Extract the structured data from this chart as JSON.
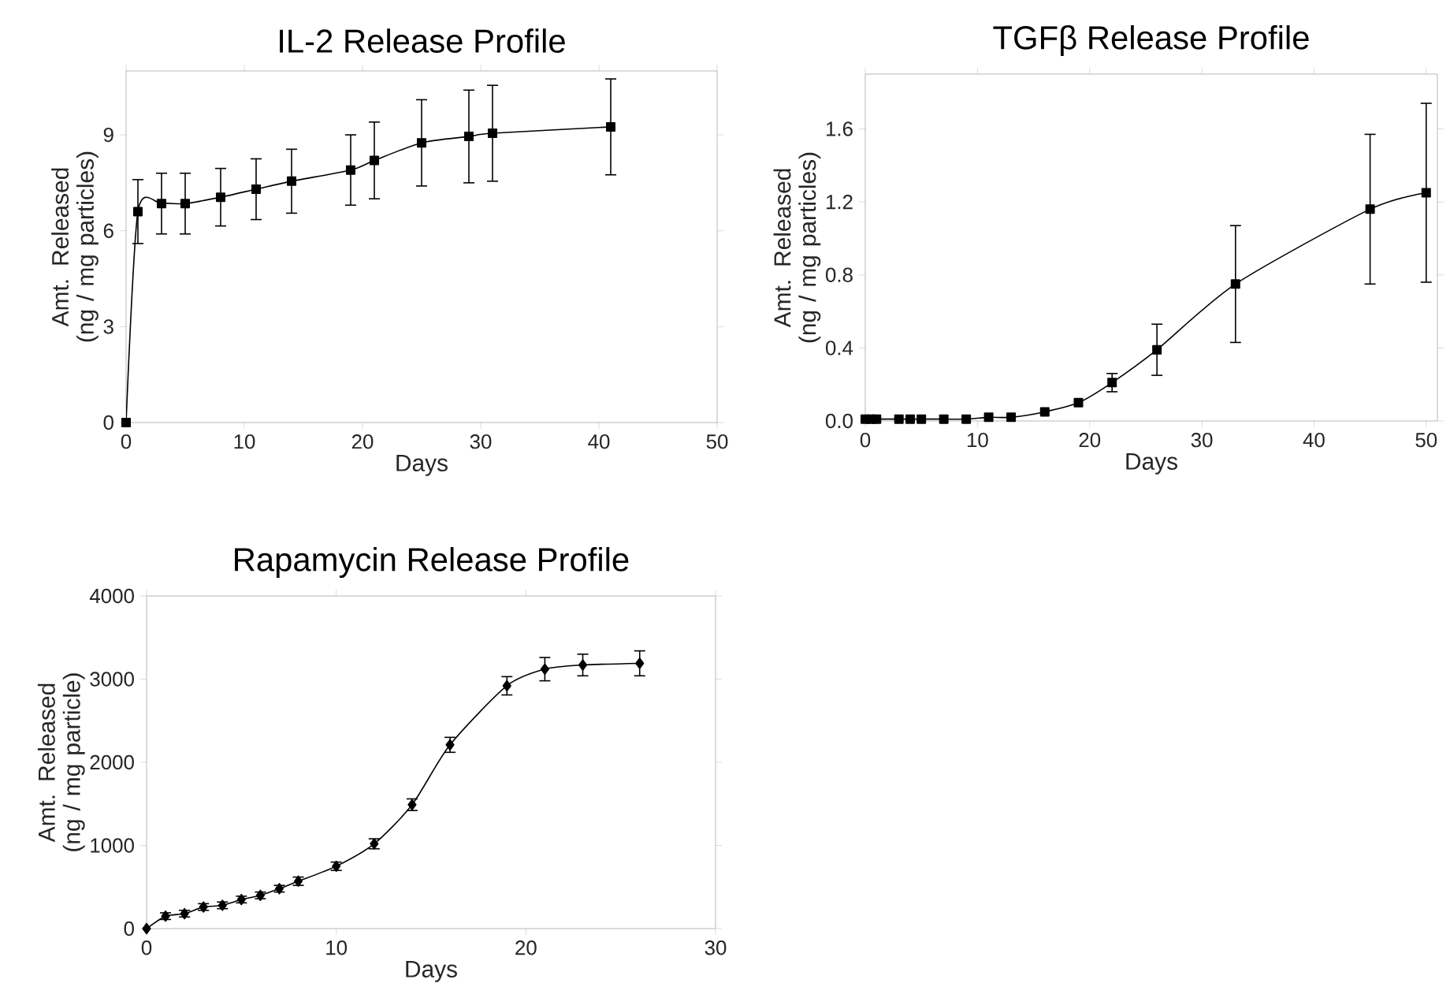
{
  "chart_data": [
    {
      "type": "line",
      "title": "IL-2 Release Profile",
      "xlabel": "Days",
      "ylabel": "Amt. Released (ng / mg particles)",
      "x": [
        0,
        1,
        3,
        5,
        8,
        11,
        14,
        19,
        21,
        25,
        29,
        31,
        41
      ],
      "values": [
        0,
        6.6,
        6.85,
        6.85,
        7.05,
        7.3,
        7.55,
        7.9,
        8.2,
        8.75,
        8.95,
        9.05,
        9.25
      ],
      "errors": [
        null,
        1.0,
        0.95,
        0.95,
        0.9,
        0.95,
        1.0,
        1.1,
        1.2,
        1.35,
        1.45,
        1.5,
        1.5
      ],
      "color": "#000000",
      "marker": "square",
      "line_style": "solid",
      "xlim": [
        0,
        50
      ],
      "xticks": [
        0,
        10,
        20,
        30,
        40,
        50
      ],
      "ylim": [
        0,
        11
      ],
      "yticks": [
        0,
        3,
        6,
        9
      ]
    },
    {
      "type": "line",
      "title": "TGFβ Release Profile",
      "xlabel": "Days",
      "ylabel": "Amt. Released (ng / mg particles)",
      "x": [
        0,
        0.5,
        1,
        3,
        4,
        5,
        7,
        9,
        11,
        13,
        16,
        19,
        22,
        26,
        33,
        45,
        50
      ],
      "values": [
        0.01,
        0.01,
        0.01,
        0.01,
        0.01,
        0.01,
        0.01,
        0.01,
        0.02,
        0.02,
        0.05,
        0.1,
        0.21,
        0.39,
        0.75,
        1.16,
        1.25
      ],
      "errors": [
        null,
        null,
        null,
        null,
        null,
        null,
        null,
        null,
        null,
        null,
        null,
        null,
        0.05,
        0.14,
        0.32,
        0.41,
        0.49
      ],
      "color": "#000000",
      "marker": "square",
      "line_style": "solid",
      "xlim": [
        0,
        51
      ],
      "xticks": [
        0,
        10,
        20,
        30,
        40,
        50
      ],
      "ylim": [
        0,
        1.9
      ],
      "yticks": [
        {
          "value": 0,
          "label": "0.0"
        },
        0.4,
        0.8,
        1.2,
        1.6
      ]
    },
    {
      "type": "line",
      "title": "Rapamycin Release Profile",
      "xlabel": "Days",
      "ylabel": "Amt. Released (ng / mg particle)",
      "x": [
        0,
        1,
        2,
        3,
        4,
        5,
        6,
        7,
        8,
        10,
        12,
        14,
        16,
        19,
        21,
        23,
        26
      ],
      "values": [
        0,
        150,
        180,
        260,
        280,
        350,
        400,
        480,
        570,
        750,
        1020,
        1490,
        2210,
        2920,
        3120,
        3170,
        3190
      ],
      "errors": [
        null,
        40,
        40,
        40,
        40,
        40,
        40,
        40,
        50,
        50,
        60,
        70,
        90,
        110,
        140,
        130,
        150
      ],
      "color": "#000000",
      "marker": "diamond",
      "line_style": "solid",
      "xlim": [
        0,
        30
      ],
      "xticks": [
        0,
        10,
        20,
        30
      ],
      "ylim": [
        0,
        4000
      ],
      "yticks": [
        0,
        1000,
        2000,
        3000,
        4000
      ]
    }
  ]
}
